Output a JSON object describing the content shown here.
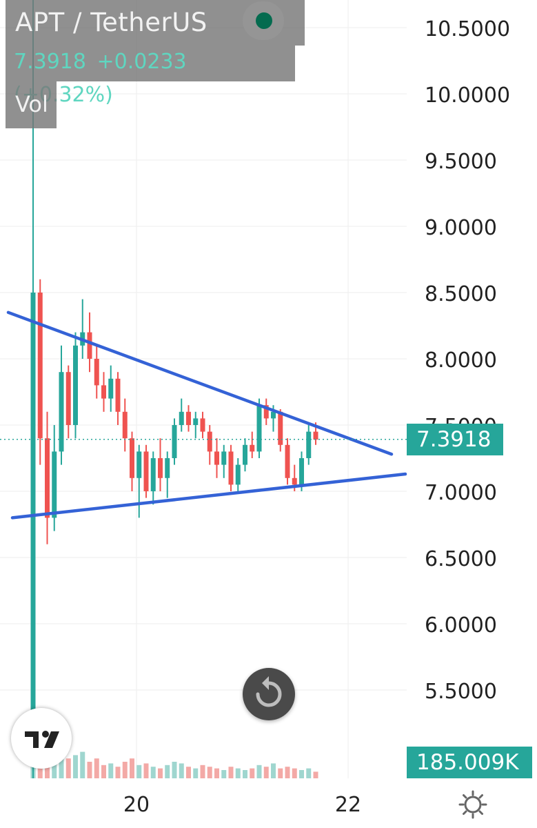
{
  "legend": {
    "title": "APT / TetherUS",
    "price": "7.3918",
    "change": "+0.0233 (+0.32%)",
    "vol_label": "Vol"
  },
  "tags": {
    "current_price": "7.3918",
    "volume": "185.009K"
  },
  "icons": [
    "tradingview-logo-icon",
    "reset-icon",
    "settings-icon",
    "live-dot-icon"
  ],
  "colors": {
    "up": "#26a69a",
    "down": "#ef5350",
    "trendline": "#3462d6",
    "vol_up": "#9fd6cf",
    "vol_down": "#f3a9a6"
  },
  "chart_data": {
    "type": "candlestick",
    "pair": "APT / TetherUS",
    "y_ticks": [
      "10.5000",
      "10.0000",
      "9.5000",
      "9.0000",
      "8.5000",
      "8.0000",
      "7.5000",
      "7.0000",
      "6.5000",
      "6.0000",
      "5.5000"
    ],
    "x_ticks": [
      "20",
      "22"
    ],
    "ylim": [
      5.0,
      10.5
    ],
    "current_price": 7.3918,
    "volume_last": "185.009K",
    "series_ohlc": [
      [
        5.0,
        8.5,
        5.0,
        8.5
      ],
      [
        8.5,
        8.6,
        7.2,
        7.4
      ],
      [
        7.4,
        7.6,
        6.6,
        6.8
      ],
      [
        6.8,
        7.5,
        6.7,
        7.3
      ],
      [
        7.3,
        8.1,
        7.2,
        7.9
      ],
      [
        7.9,
        7.95,
        7.4,
        7.5
      ],
      [
        7.5,
        8.2,
        7.4,
        8.1
      ],
      [
        8.1,
        8.45,
        8.0,
        8.2
      ],
      [
        8.2,
        8.35,
        7.9,
        8.0
      ],
      [
        8.0,
        8.1,
        7.7,
        7.8
      ],
      [
        7.8,
        7.9,
        7.6,
        7.7
      ],
      [
        7.7,
        7.95,
        7.6,
        7.85
      ],
      [
        7.85,
        7.9,
        7.5,
        7.6
      ],
      [
        7.6,
        7.7,
        7.3,
        7.4
      ],
      [
        7.4,
        7.45,
        7.0,
        7.1
      ],
      [
        7.1,
        7.35,
        6.8,
        7.3
      ],
      [
        7.3,
        7.35,
        6.95,
        7.0
      ],
      [
        7.0,
        7.3,
        6.9,
        7.25
      ],
      [
        7.25,
        7.4,
        7.0,
        7.1
      ],
      [
        7.1,
        7.3,
        6.95,
        7.25
      ],
      [
        7.25,
        7.55,
        7.2,
        7.5
      ],
      [
        7.5,
        7.7,
        7.45,
        7.6
      ],
      [
        7.6,
        7.65,
        7.45,
        7.5
      ],
      [
        7.5,
        7.6,
        7.4,
        7.55
      ],
      [
        7.55,
        7.6,
        7.4,
        7.45
      ],
      [
        7.45,
        7.5,
        7.2,
        7.3
      ],
      [
        7.3,
        7.4,
        7.1,
        7.2
      ],
      [
        7.2,
        7.35,
        7.1,
        7.3
      ],
      [
        7.3,
        7.35,
        7.0,
        7.05
      ],
      [
        7.05,
        7.25,
        7.0,
        7.2
      ],
      [
        7.2,
        7.4,
        7.15,
        7.35
      ],
      [
        7.35,
        7.45,
        7.25,
        7.3
      ],
      [
        7.3,
        7.7,
        7.25,
        7.65
      ],
      [
        7.65,
        7.7,
        7.5,
        7.55
      ],
      [
        7.55,
        7.65,
        7.45,
        7.6
      ],
      [
        7.6,
        7.62,
        7.3,
        7.35
      ],
      [
        7.35,
        7.4,
        7.05,
        7.1
      ],
      [
        7.1,
        7.2,
        7.0,
        7.05
      ],
      [
        7.05,
        7.3,
        7.0,
        7.25
      ],
      [
        7.25,
        7.5,
        7.2,
        7.45
      ],
      [
        7.45,
        7.52,
        7.35,
        7.39
      ]
    ],
    "volumes": [
      0.55,
      0.3,
      0.25,
      0.2,
      0.18,
      0.12,
      0.14,
      0.16,
      0.1,
      0.12,
      0.08,
      0.09,
      0.07,
      0.1,
      0.12,
      0.08,
      0.09,
      0.07,
      0.06,
      0.08,
      0.1,
      0.09,
      0.07,
      0.06,
      0.08,
      0.07,
      0.06,
      0.05,
      0.07,
      0.06,
      0.05,
      0.06,
      0.08,
      0.07,
      0.09,
      0.06,
      0.07,
      0.06,
      0.05,
      0.06,
      0.04
    ],
    "trendlines": [
      {
        "name": "upper",
        "points": [
          [
            8.35,
            "start"
          ],
          [
            7.28,
            "end"
          ]
        ]
      },
      {
        "name": "lower",
        "points": [
          [
            6.8,
            "start"
          ],
          [
            7.13,
            "end"
          ]
        ]
      }
    ]
  }
}
